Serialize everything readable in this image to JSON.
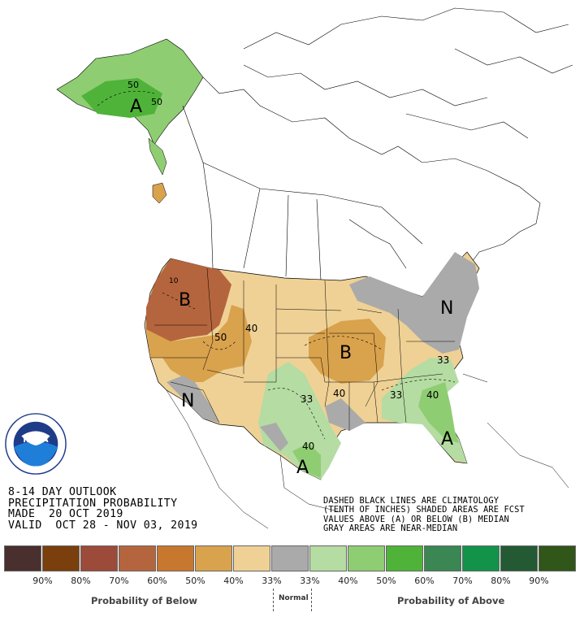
{
  "title_lines": [
    "8-14 DAY OUTLOOK",
    "PRECIPITATION PROBABILITY",
    "MADE  20 OCT 2019",
    "VALID  OCT 28 - NOV 03, 2019"
  ],
  "note_lines": [
    "DASHED BLACK LINES ARE CLIMATOLOGY",
    "(TENTH OF INCHES) SHADED AREAS ARE FCST",
    "VALUES ABOVE (A) OR BELOW (B) MEDIAN",
    "GRAY AREAS ARE NEAR-MEDIAN"
  ],
  "logo": {
    "text": "NOAA",
    "ring_text": "NATIONAL OCEANIC AND ATMOSPHERIC ADMINISTRATION · U.S. DEPARTMENT OF COMMERCE"
  },
  "map_labels": {
    "alaska_a": "A",
    "alaska_50a": "50",
    "alaska_50b": "50",
    "nw_b": "B",
    "nw_40": "40",
    "nw_50": "50",
    "nw_10": "10",
    "mw_b": "B",
    "mw_40": "40",
    "ne_n": "N",
    "se_33": "33",
    "se_40": "40",
    "se_33b": "33",
    "fl_a": "A",
    "sw_n": "N",
    "tx_33": "33",
    "tx_40": "40",
    "tx_a": "A"
  },
  "legend": {
    "colors": [
      "#4a2f2f",
      "#7a3f0c",
      "#9c4a3a",
      "#b5653d",
      "#c8772f",
      "#d9a24d",
      "#efd195",
      "#aaaaaa",
      "#b5dca2",
      "#8fcd72",
      "#4fb339",
      "#3a8753",
      "#13924a",
      "#245a33",
      "#30561a"
    ],
    "percent_labels": [
      "90%",
      "80%",
      "70%",
      "60%",
      "50%",
      "40%",
      "33%",
      "33%",
      "40%",
      "50%",
      "60%",
      "70%",
      "80%",
      "90%"
    ],
    "below_caption": "Probability of Below",
    "normal_caption": "Normal",
    "above_caption": "Probability of Above"
  }
}
